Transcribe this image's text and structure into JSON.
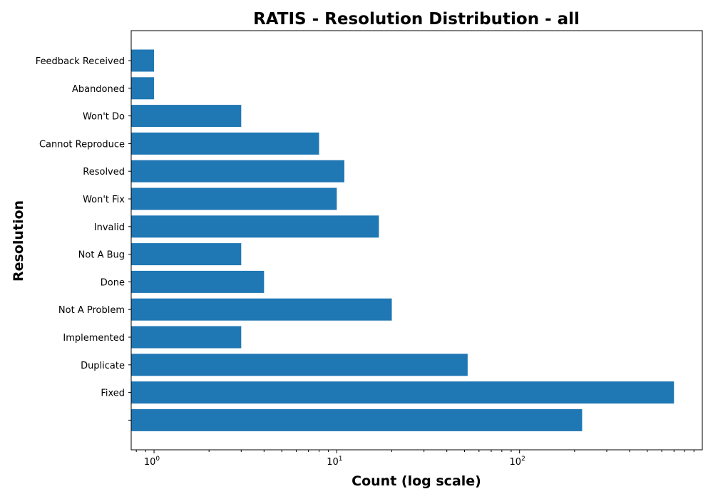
{
  "chart_data": {
    "type": "bar",
    "orientation": "horizontal",
    "title": "RATIS - Resolution Distribution - all",
    "xlabel": "Count (log scale)",
    "ylabel": "Resolution",
    "xscale": "log",
    "xlim": [
      0.75,
      1000
    ],
    "x_ticks": [
      {
        "value": 1,
        "base": "10",
        "exp": "0"
      },
      {
        "value": 10,
        "base": "10",
        "exp": "1"
      },
      {
        "value": 100,
        "base": "10",
        "exp": "2"
      }
    ],
    "categories": [
      "Feedback Received",
      "Abandoned",
      "Won't Do",
      "Cannot Reproduce",
      "Resolved",
      "Won't Fix",
      "Invalid",
      "Not A Bug",
      "Done",
      "Not A Problem",
      "Implemented",
      "Duplicate",
      "Fixed",
      ""
    ],
    "values": [
      1,
      1,
      3,
      8,
      11,
      10,
      17,
      3,
      4,
      20,
      3,
      52,
      700,
      220
    ],
    "bar_color": "#1f77b4",
    "grid": false,
    "legend": "none"
  }
}
